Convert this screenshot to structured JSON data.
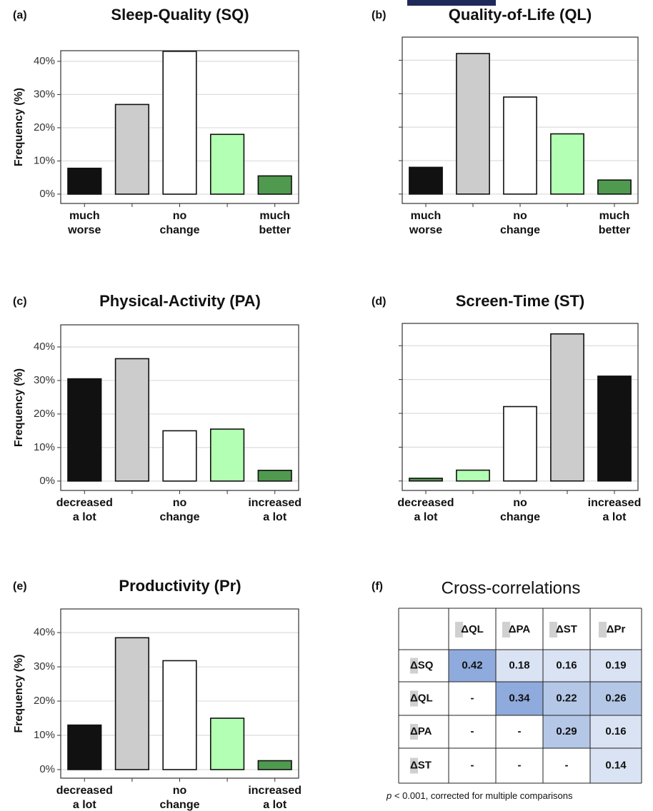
{
  "chart_data": [
    {
      "type": "bar",
      "panel": "(a)",
      "title": "Sleep-Quality (SQ)",
      "ylabel": "Frequency (%)",
      "categories": [
        "much\nworse",
        null,
        "no\nchange",
        null,
        "much\nbetter"
      ],
      "values": [
        7.8,
        27,
        43,
        18,
        5.5
      ],
      "colors": [
        "#111111",
        "#cccccc",
        "#ffffff",
        "#b3ffb3",
        "#4f9a4f"
      ],
      "ylim": [
        -2.8,
        43.2
      ],
      "yticks": [
        {
          "value": 0,
          "label": "0%"
        },
        {
          "value": 10,
          "label": "10%"
        },
        {
          "value": 20,
          "label": "20%"
        },
        {
          "value": 30,
          "label": "30%"
        },
        {
          "value": 40,
          "label": "40%"
        }
      ],
      "grid": true,
      "ytick_labels": true
    },
    {
      "type": "bar",
      "panel": "(b)",
      "title": "Quality-of-Life (QL)",
      "categories": [
        "much\nworse",
        null,
        "no\nchange",
        null,
        "much\nbetter"
      ],
      "values": [
        8,
        42,
        29,
        18,
        4.2
      ],
      "colors": [
        "#111111",
        "#cccccc",
        "#ffffff",
        "#b3ffb3",
        "#4f9a4f"
      ],
      "ylim": [
        -2.8,
        46.9
      ],
      "yticks": [
        0,
        10,
        20,
        30,
        40
      ],
      "grid": true,
      "ytick_labels": false
    },
    {
      "type": "bar",
      "panel": "(c)",
      "title": "Physical-Activity (PA)",
      "ylabel": "Frequency (%)",
      "categories": [
        "decreased\na lot",
        null,
        "no\nchange",
        null,
        "increased\na lot"
      ],
      "values": [
        30.5,
        36.5,
        15,
        15.5,
        3.2
      ],
      "colors": [
        "#111111",
        "#cccccc",
        "#ffffff",
        "#b3ffb3",
        "#4f9a4f"
      ],
      "ylim": [
        -2.8,
        46.6
      ],
      "yticks": [
        {
          "value": 0,
          "label": "0%"
        },
        {
          "value": 10,
          "label": "10%"
        },
        {
          "value": 20,
          "label": "20%"
        },
        {
          "value": 30,
          "label": "30%"
        },
        {
          "value": 40,
          "label": "40%"
        }
      ],
      "grid": true,
      "ytick_labels": true
    },
    {
      "type": "bar",
      "panel": "(d)",
      "title": "Screen-Time (ST)",
      "categories": [
        "decreased\na lot",
        null,
        "no\nchange",
        null,
        "increased\na lot"
      ],
      "values": [
        0.8,
        3.2,
        22,
        43.5,
        31
      ],
      "colors": [
        "#4f9a4f",
        "#b3ffb3",
        "#ffffff",
        "#cccccc",
        "#111111"
      ],
      "ylim": [
        -2.8,
        46.6
      ],
      "yticks": [
        0,
        10,
        20,
        30,
        40
      ],
      "grid": true,
      "ytick_labels": false
    },
    {
      "type": "bar",
      "panel": "(e)",
      "title": "Productivity (Pr)",
      "ylabel": "Frequency (%)",
      "categories": [
        "decreased\na lot",
        null,
        "no\nchange",
        null,
        "increased\na lot"
      ],
      "values": [
        13,
        38.5,
        31.8,
        15,
        2.6
      ],
      "colors": [
        "#111111",
        "#cccccc",
        "#ffffff",
        "#b3ffb3",
        "#4f9a4f"
      ],
      "ylim": [
        -2.5,
        46.9
      ],
      "yticks": [
        {
          "value": 0,
          "label": "0%"
        },
        {
          "value": 10,
          "label": "10%"
        },
        {
          "value": 20,
          "label": "20%"
        },
        {
          "value": 30,
          "label": "30%"
        },
        {
          "value": 40,
          "label": "40%"
        }
      ],
      "grid": true,
      "ytick_labels": true
    }
  ],
  "table": {
    "panel": "(f)",
    "title": "Cross-correlations",
    "columns": [
      "ΔQL",
      "ΔPA",
      "ΔST",
      "ΔPr"
    ],
    "rows": [
      {
        "label": "ΔSQ",
        "cells": [
          "0.42",
          "0.18",
          "0.16",
          "0.19"
        ],
        "shades": [
          "#8faadc",
          "#dae3f3",
          "#dae3f3",
          "#dae3f3"
        ]
      },
      {
        "label": "ΔQL",
        "cells": [
          "-",
          "0.34",
          "0.22",
          "0.26"
        ],
        "shades": [
          "#ffffff",
          "#8faadc",
          "#b4c7e7",
          "#b4c7e7"
        ]
      },
      {
        "label": "ΔPA",
        "cells": [
          "-",
          "-",
          "0.29",
          "0.16"
        ],
        "shades": [
          "#ffffff",
          "#ffffff",
          "#b4c7e7",
          "#dae3f3"
        ]
      },
      {
        "label": "ΔST",
        "cells": [
          "-",
          "-",
          "-",
          "0.14"
        ],
        "shades": [
          "#ffffff",
          "#ffffff",
          "#ffffff",
          "#dae3f3"
        ]
      }
    ],
    "footnote": {
      "symbol": "p",
      "text": "< 0.001, corrected for multiple comparisons"
    }
  }
}
